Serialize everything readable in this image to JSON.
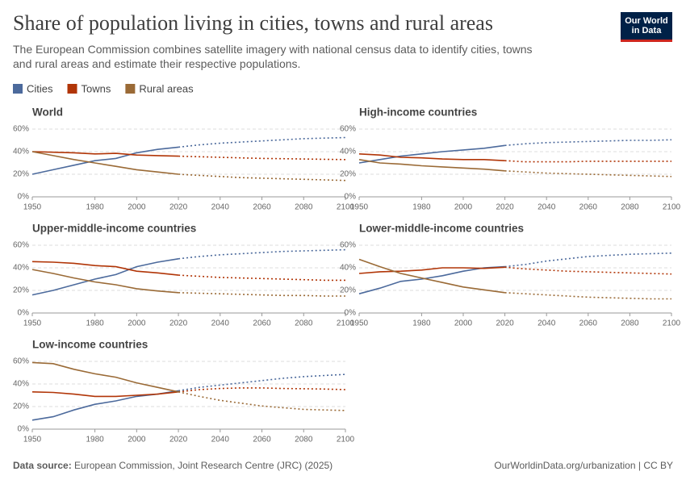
{
  "title": "Share of population living in cities, towns and rural areas",
  "subtitle": "The European Commission combines satellite imagery with national census data to identify cities, towns and rural areas and estimate their respective populations.",
  "logo": "Our World in Data",
  "source_label": "Data source:",
  "source": "European Commission, Joint Research Centre (JRC) (2025)",
  "url": "OurWorldinData.org/urbanization | CC BY",
  "chart_data": [
    {
      "type": "line",
      "title": "World",
      "x": [
        1950,
        1960,
        1970,
        1980,
        1990,
        2000,
        2010,
        2020,
        2030,
        2040,
        2050,
        2060,
        2070,
        2080,
        2090,
        2100
      ],
      "series": [
        {
          "name": "Cities",
          "color": "#4c6a9c",
          "values": [
            20,
            24,
            28,
            32,
            34,
            39,
            42,
            44,
            46,
            47.5,
            48.5,
            49.5,
            50.5,
            51.5,
            52,
            52.5
          ]
        },
        {
          "name": "Towns",
          "color": "#b13507",
          "values": [
            40,
            39.5,
            39,
            38,
            38.5,
            37,
            36.5,
            36,
            35.5,
            35,
            34.5,
            34,
            33.8,
            33.5,
            33.2,
            33
          ]
        },
        {
          "name": "Rural areas",
          "color": "#9a6a36",
          "values": [
            40,
            36.5,
            33,
            30,
            27,
            24,
            22,
            20,
            19,
            18,
            17,
            16.5,
            16,
            15.5,
            15,
            14.5
          ]
        }
      ],
      "xlim": [
        1950,
        2100
      ],
      "xticks": [
        1950,
        1980,
        2000,
        2020,
        2040,
        2060,
        2080,
        2100
      ],
      "ylim": [
        0,
        60
      ],
      "yticks": [
        {
          "value": 0,
          "label": "0%"
        },
        {
          "value": 20,
          "label": "20%"
        },
        {
          "value": 40,
          "label": "40%"
        },
        {
          "value": 60,
          "label": "60%"
        }
      ],
      "grid": true,
      "projection_start": 2020
    },
    {
      "type": "line",
      "title": "High-income countries",
      "x": [
        1950,
        1960,
        1970,
        1980,
        1990,
        2000,
        2010,
        2020,
        2030,
        2040,
        2050,
        2060,
        2070,
        2080,
        2090,
        2100
      ],
      "series": [
        {
          "name": "Cities",
          "color": "#4c6a9c",
          "values": [
            30,
            33,
            36,
            38,
            40,
            41.5,
            43,
            45.5,
            47,
            48,
            48.5,
            49,
            49.5,
            50,
            50,
            50.5
          ]
        },
        {
          "name": "Towns",
          "color": "#b13507",
          "values": [
            38,
            37,
            35,
            34.5,
            33.5,
            33,
            33,
            32,
            31,
            31,
            31,
            31.5,
            31.5,
            31.5,
            31.5,
            31.5
          ]
        },
        {
          "name": "Rural areas",
          "color": "#9a6a36",
          "values": [
            33,
            30,
            29,
            27.5,
            26.5,
            25.5,
            24.5,
            23,
            22,
            21,
            20.5,
            20,
            19.5,
            19,
            18.5,
            18
          ]
        }
      ],
      "xlim": [
        1950,
        2100
      ],
      "xticks": [
        1950,
        1980,
        2000,
        2020,
        2040,
        2060,
        2080,
        2100
      ],
      "ylim": [
        0,
        60
      ],
      "yticks": [
        {
          "value": 0,
          "label": "0%"
        },
        {
          "value": 20,
          "label": "20%"
        },
        {
          "value": 40,
          "label": "40%"
        },
        {
          "value": 60,
          "label": "60%"
        }
      ],
      "grid": true,
      "projection_start": 2020
    },
    {
      "type": "line",
      "title": "Upper-middle-income countries",
      "x": [
        1950,
        1960,
        1970,
        1980,
        1990,
        2000,
        2010,
        2020,
        2030,
        2040,
        2050,
        2060,
        2070,
        2080,
        2090,
        2100
      ],
      "series": [
        {
          "name": "Cities",
          "color": "#4c6a9c",
          "values": [
            16,
            20,
            25,
            30,
            34,
            41,
            45,
            48,
            50,
            51.5,
            52.5,
            53.5,
            54.5,
            55,
            55.5,
            56
          ]
        },
        {
          "name": "Towns",
          "color": "#b13507",
          "values": [
            45.5,
            45,
            44,
            42,
            41,
            37,
            35.5,
            33.5,
            32.5,
            31.5,
            31,
            30.5,
            30,
            29.5,
            29,
            29
          ]
        },
        {
          "name": "Rural areas",
          "color": "#9a6a36",
          "values": [
            38.5,
            35,
            31,
            27.5,
            25,
            21.5,
            19.5,
            18,
            17.5,
            17,
            16.5,
            16,
            15.5,
            15.5,
            15,
            15
          ]
        }
      ],
      "xlim": [
        1950,
        2100
      ],
      "xticks": [
        1950,
        1980,
        2000,
        2020,
        2040,
        2060,
        2080,
        2100
      ],
      "ylim": [
        0,
        60
      ],
      "yticks": [
        {
          "value": 0,
          "label": "0%"
        },
        {
          "value": 20,
          "label": "20%"
        },
        {
          "value": 40,
          "label": "40%"
        },
        {
          "value": 60,
          "label": "60%"
        }
      ],
      "grid": true,
      "projection_start": 2020
    },
    {
      "type": "line",
      "title": "Lower-middle-income countries",
      "x": [
        1950,
        1960,
        1970,
        1980,
        1990,
        2000,
        2010,
        2020,
        2030,
        2040,
        2050,
        2060,
        2070,
        2080,
        2090,
        2100
      ],
      "series": [
        {
          "name": "Cities",
          "color": "#4c6a9c",
          "values": [
            17,
            22,
            28,
            30,
            33,
            37,
            40,
            41,
            43,
            46,
            48,
            50,
            51,
            52,
            52.5,
            53
          ]
        },
        {
          "name": "Towns",
          "color": "#b13507",
          "values": [
            35,
            36.5,
            37,
            38,
            40,
            40,
            39.5,
            40.5,
            39,
            38,
            37,
            36.5,
            36,
            35.5,
            35,
            34.5
          ]
        },
        {
          "name": "Rural areas",
          "color": "#9a6a36",
          "values": [
            47.5,
            41,
            35,
            31,
            27,
            23,
            20.5,
            18,
            17,
            16,
            15,
            14,
            13.5,
            13,
            12.5,
            12.5
          ]
        }
      ],
      "xlim": [
        1950,
        2100
      ],
      "xticks": [
        1950,
        1980,
        2000,
        2020,
        2040,
        2060,
        2080,
        2100
      ],
      "ylim": [
        0,
        60
      ],
      "yticks": [
        {
          "value": 0,
          "label": "0%"
        },
        {
          "value": 20,
          "label": "20%"
        },
        {
          "value": 40,
          "label": "40%"
        },
        {
          "value": 60,
          "label": "60%"
        }
      ],
      "grid": true,
      "projection_start": 2020
    },
    {
      "type": "line",
      "title": "Low-income countries",
      "x": [
        1950,
        1960,
        1970,
        1980,
        1990,
        2000,
        2010,
        2020,
        2030,
        2040,
        2050,
        2060,
        2070,
        2080,
        2090,
        2100
      ],
      "series": [
        {
          "name": "Cities",
          "color": "#4c6a9c",
          "values": [
            8,
            11,
            17,
            22,
            25,
            29,
            31,
            34,
            37,
            39,
            41,
            43,
            45,
            46.5,
            47.5,
            48.5
          ]
        },
        {
          "name": "Towns",
          "color": "#b13507",
          "values": [
            33,
            32.5,
            31,
            29,
            29,
            30,
            31,
            33,
            35,
            36,
            36.5,
            36.5,
            36,
            35.8,
            35.5,
            35
          ]
        },
        {
          "name": "Rural areas",
          "color": "#9a6a36",
          "values": [
            59,
            58,
            53,
            49,
            46,
            41,
            37,
            33,
            29,
            25.5,
            23,
            20.5,
            19,
            17.5,
            17,
            16.5
          ]
        }
      ],
      "xlim": [
        1950,
        2100
      ],
      "xticks": [
        1950,
        1980,
        2000,
        2020,
        2040,
        2060,
        2080,
        2100
      ],
      "ylim": [
        0,
        60
      ],
      "yticks": [
        {
          "value": 0,
          "label": "0%"
        },
        {
          "value": 20,
          "label": "20%"
        },
        {
          "value": 40,
          "label": "40%"
        },
        {
          "value": 60,
          "label": "60%"
        }
      ],
      "grid": true,
      "projection_start": 2020
    }
  ]
}
